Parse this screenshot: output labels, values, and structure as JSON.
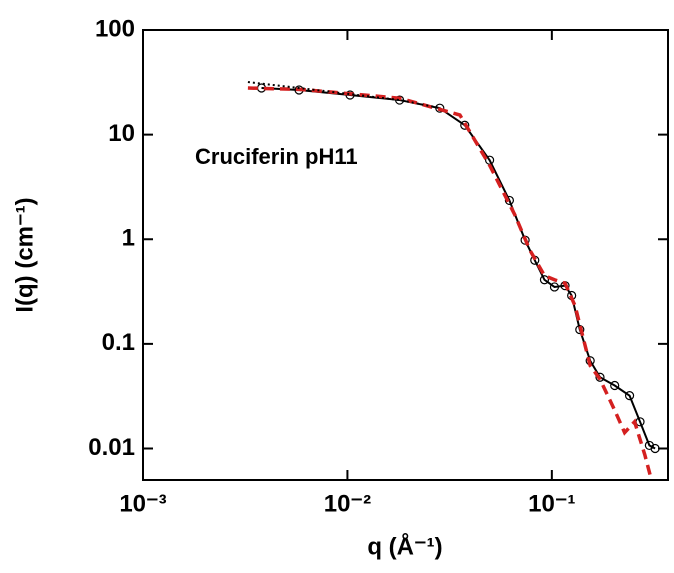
{
  "chart_data": {
    "type": "line",
    "annotation": "Cruciferin pH11",
    "x_label": "q (Å⁻¹)",
    "y_label": "I(q)  (cm⁻¹)",
    "log_x": true,
    "log_y": true,
    "xlim": [
      0.001,
      0.37
    ],
    "ylim": [
      0.005,
      100
    ],
    "xticks": [
      {
        "value": 0.001,
        "label": "10⁻³"
      },
      {
        "value": 0.01,
        "label": "10⁻²"
      },
      {
        "value": 0.1,
        "label": "10⁻¹"
      }
    ],
    "yticks": [
      100,
      10,
      1,
      0.1,
      0.01
    ],
    "series": [
      {
        "color": "#000000",
        "style": "markers",
        "x": [
          0.0038,
          0.0058,
          0.0103,
          0.018,
          0.0283,
          0.0375,
          0.0496,
          0.062,
          0.074,
          0.0825,
          0.092,
          0.103,
          0.116,
          0.125,
          0.137,
          0.154,
          0.172,
          0.203,
          0.24,
          0.27,
          0.3,
          0.32
        ],
        "values": [
          27.9,
          26.7,
          23.9,
          21.4,
          17.9,
          12.3,
          5.7,
          2.35,
          0.98,
          0.63,
          0.41,
          0.35,
          0.36,
          0.29,
          0.137,
          0.069,
          0.048,
          0.04,
          0.032,
          0.018,
          0.0107,
          0.01
        ]
      },
      {
        "color": "#d42020",
        "style": "dashed",
        "x": [
          0.00326,
          0.006,
          0.018,
          0.0355,
          0.0496,
          0.066,
          0.078,
          0.092,
          0.103,
          0.116,
          0.13,
          0.154,
          0.172,
          0.203,
          0.227,
          0.254,
          0.285,
          0.307
        ],
        "values": [
          27.9,
          27.0,
          22.3,
          15.4,
          5.1,
          1.7,
          0.79,
          0.45,
          0.41,
          0.38,
          0.23,
          0.062,
          0.046,
          0.0232,
          0.0142,
          0.018,
          0.0087,
          0.005
        ]
      },
      {
        "color": "#000000",
        "style": "dotted",
        "x": [
          0.00326,
          0.0058,
          0.0103,
          0.018,
          0.0283
        ],
        "values": [
          31.8,
          27.9,
          24.4,
          21.4,
          18.0
        ]
      }
    ]
  }
}
